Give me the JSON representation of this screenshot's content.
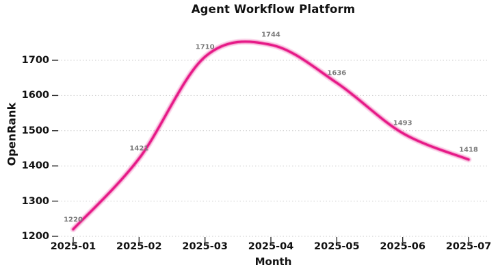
{
  "chart_data": {
    "type": "line",
    "title": "Agent Workflow Platform",
    "xlabel": "Month",
    "ylabel": "OpenRank",
    "categories": [
      "2025-01",
      "2025-02",
      "2025-03",
      "2025-04",
      "2025-05",
      "2025-06",
      "2025-07"
    ],
    "series": [
      {
        "name": "OpenRank",
        "values": [
          1220,
          1421,
          1710,
          1744,
          1636,
          1493,
          1418
        ]
      }
    ],
    "point_labels": [
      "1220",
      "1421",
      "1710",
      "1744",
      "1636",
      "1493",
      "1418"
    ],
    "yticks": [
      1200,
      1300,
      1400,
      1500,
      1600,
      1700
    ],
    "ylim": [
      1200,
      1760
    ],
    "grid": "horizontal-dotted",
    "legend_position": "none",
    "smooth": true,
    "colors": {
      "line": "#e61987",
      "point_label": "#7a7a7a",
      "tick_label": "#111111",
      "grid_line": "#cbcbcb",
      "tick_mark": "#2a2a2a",
      "background": "#ffffff"
    }
  }
}
